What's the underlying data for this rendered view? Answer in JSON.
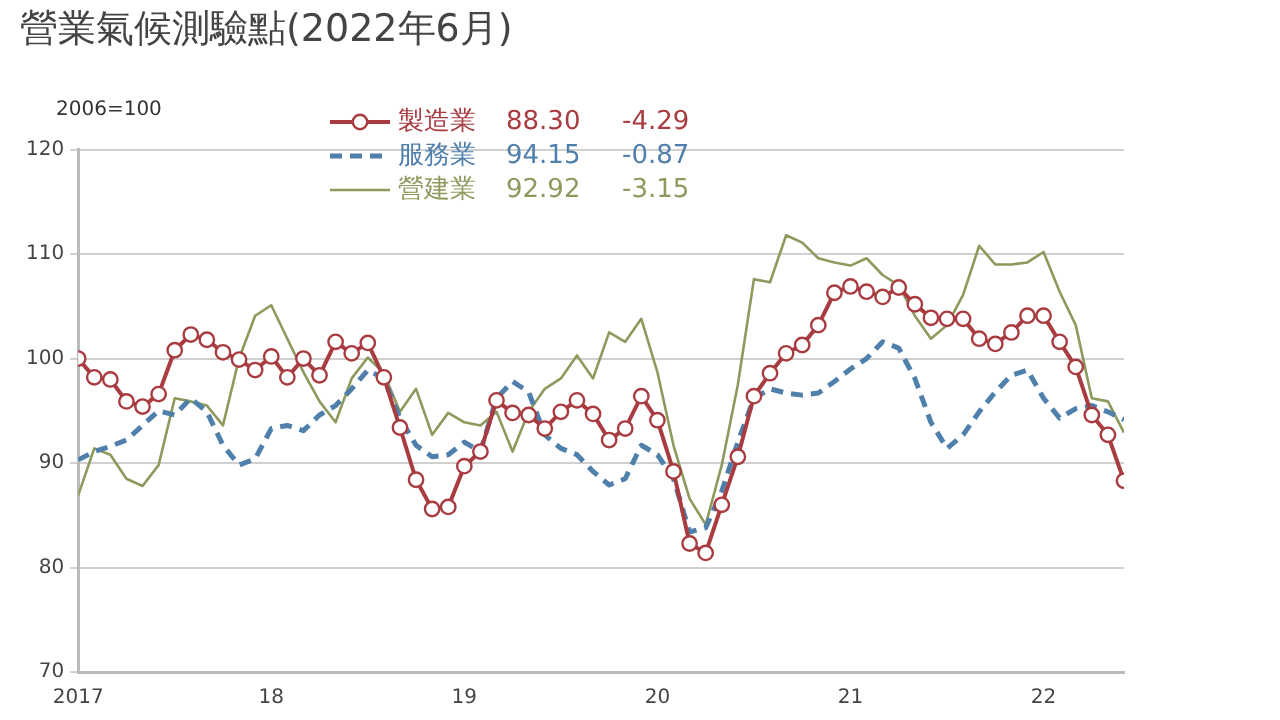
{
  "chart_data": {
    "type": "line",
    "title": "營業氣候測驗點(2022年6月)",
    "ylabel": "2006=100",
    "x": [
      "2017-01",
      "2017-02",
      "2017-03",
      "2017-04",
      "2017-05",
      "2017-06",
      "2017-07",
      "2017-08",
      "2017-09",
      "2017-10",
      "2017-11",
      "2017-12",
      "2018-01",
      "2018-02",
      "2018-03",
      "2018-04",
      "2018-05",
      "2018-06",
      "2018-07",
      "2018-08",
      "2018-09",
      "2018-10",
      "2018-11",
      "2018-12",
      "2019-01",
      "2019-02",
      "2019-03",
      "2019-04",
      "2019-05",
      "2019-06",
      "2019-07",
      "2019-08",
      "2019-09",
      "2019-10",
      "2019-11",
      "2019-12",
      "2020-01",
      "2020-02",
      "2020-03",
      "2020-04",
      "2020-05",
      "2020-06",
      "2020-07",
      "2020-08",
      "2020-09",
      "2020-10",
      "2020-11",
      "2020-12",
      "2021-01",
      "2021-02",
      "2021-03",
      "2021-04",
      "2021-05",
      "2021-06",
      "2021-07",
      "2021-08",
      "2021-09",
      "2021-10",
      "2021-11",
      "2021-12",
      "2022-01",
      "2022-02",
      "2022-03",
      "2022-04",
      "2022-05",
      "2022-06"
    ],
    "series": [
      {
        "name": "製造業",
        "color": "#a83c40",
        "marker": "circle",
        "line_style": "solid",
        "values": [
          100.0,
          98.2,
          98.0,
          95.9,
          95.4,
          96.6,
          100.8,
          102.3,
          101.8,
          100.6,
          99.9,
          98.9,
          100.2,
          98.2,
          100.0,
          98.4,
          101.6,
          100.5,
          101.5,
          98.2,
          93.4,
          88.4,
          85.6,
          85.8,
          89.7,
          91.1,
          96.0,
          94.8,
          94.6,
          93.3,
          94.9,
          96.0,
          94.7,
          92.2,
          93.3,
          96.4,
          94.1,
          89.2,
          82.3,
          81.4,
          86.0,
          90.6,
          96.4,
          98.6,
          100.5,
          101.3,
          103.2,
          106.3,
          106.9,
          106.4,
          105.9,
          106.8,
          105.2,
          103.9,
          103.8,
          103.8,
          101.9,
          101.4,
          102.5,
          104.1,
          104.1,
          101.6,
          99.2,
          94.6,
          92.7,
          88.3
        ]
      },
      {
        "name": "服務業",
        "color": "#4f7fab",
        "marker": "none",
        "line_style": "dashed",
        "values": [
          90.3,
          91.1,
          91.6,
          92.2,
          93.6,
          95.0,
          94.6,
          96.2,
          94.9,
          91.7,
          89.8,
          90.4,
          93.3,
          93.6,
          93.1,
          94.6,
          95.5,
          97.1,
          98.9,
          98.1,
          94.3,
          91.7,
          90.6,
          90.8,
          92.0,
          91.1,
          96.2,
          97.8,
          96.8,
          92.7,
          91.4,
          90.8,
          89.2,
          87.9,
          88.5,
          91.7,
          90.8,
          88.5,
          83.4,
          83.8,
          87.3,
          92.0,
          96.2,
          97.1,
          96.7,
          96.5,
          96.7,
          97.8,
          99.0,
          100.0,
          101.6,
          101.0,
          98.1,
          93.9,
          91.4,
          92.7,
          94.9,
          96.8,
          98.4,
          98.9,
          96.2,
          94.3,
          95.2,
          95.5,
          94.9,
          94.15
        ]
      },
      {
        "name": "營建業",
        "color": "#8c9a5e",
        "marker": "none",
        "line_style": "solid",
        "values": [
          86.9,
          91.4,
          90.8,
          88.5,
          87.8,
          89.8,
          96.2,
          95.9,
          95.5,
          93.6,
          100.0,
          104.1,
          105.1,
          101.9,
          98.7,
          95.9,
          93.9,
          98.1,
          100.1,
          98.6,
          94.9,
          97.1,
          92.7,
          94.8,
          93.9,
          93.6,
          94.9,
          91.1,
          94.9,
          97.1,
          98.1,
          100.3,
          98.1,
          102.5,
          101.6,
          103.8,
          98.7,
          91.7,
          86.6,
          84.1,
          89.8,
          97.5,
          107.6,
          107.3,
          111.8,
          111.1,
          109.6,
          109.2,
          108.9,
          109.6,
          108.0,
          107.0,
          104.1,
          101.9,
          103.2,
          106.1,
          110.8,
          109.0,
          109.0,
          109.2,
          110.2,
          106.4,
          103.2,
          96.2,
          95.9,
          92.92
        ]
      }
    ],
    "annotations": [
      "88.30",
      "-4.29",
      "94.15",
      "-0.87",
      "92.92",
      "-3.15"
    ],
    "xlim": [
      "2017-01",
      "2022-06"
    ],
    "xticks": [
      {
        "value": "2017-01",
        "label": "2017"
      },
      {
        "value": "2018-01",
        "label": "18"
      },
      {
        "value": "2019-01",
        "label": "19"
      },
      {
        "value": "2020-01",
        "label": "20"
      },
      {
        "value": "2021-01",
        "label": "21"
      },
      {
        "value": "2022-01",
        "label": "22"
      }
    ],
    "ylim": [
      70,
      120
    ],
    "yticks": [
      70,
      80,
      90,
      100,
      110,
      120
    ],
    "grid": "y",
    "legend": "top left"
  }
}
